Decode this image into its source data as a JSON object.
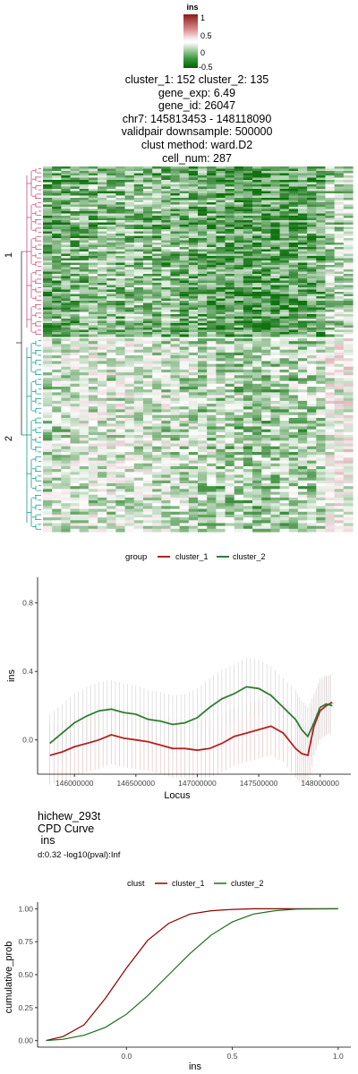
{
  "colorbar": {
    "title": "ins",
    "ticks": [
      "1",
      "0.5",
      "0",
      "-0.5"
    ],
    "colors": [
      "#8b1a1a",
      "#ffffff",
      "#006400"
    ]
  },
  "heatmap_title": [
    "cluster_1: 152 cluster_2: 135",
    "gene_exp: 6.49",
    "gene_id: 26047",
    "chr7: 145813453 - 148118090",
    "validpair downsample: 500000",
    "clust method: ward.D2",
    "cell_num: 287"
  ],
  "heatmap": {
    "row_labels": [
      "1",
      "2"
    ],
    "cluster_colors": [
      "#c0507a",
      "#1a9a8a"
    ]
  },
  "chart_data": [
    {
      "type": "line",
      "legend_title": "group",
      "series": [
        {
          "name": "cluster_1",
          "color": "#b22222",
          "x": [
            145800000,
            145900000,
            146000000,
            146100000,
            146200000,
            146300000,
            146400000,
            146500000,
            146600000,
            146700000,
            146800000,
            146900000,
            147000000,
            147100000,
            147200000,
            147300000,
            147400000,
            147500000,
            147600000,
            147700000,
            147800000,
            147850000,
            147900000,
            147950000,
            148000000,
            148050000,
            148100000
          ],
          "y": [
            -0.09,
            -0.07,
            -0.04,
            -0.02,
            0.0,
            0.03,
            0.01,
            0.0,
            -0.01,
            -0.03,
            -0.05,
            -0.05,
            -0.06,
            -0.05,
            -0.02,
            0.02,
            0.04,
            0.06,
            0.08,
            0.04,
            -0.05,
            -0.08,
            -0.09,
            0.08,
            0.17,
            0.2,
            0.22
          ]
        },
        {
          "name": "cluster_2",
          "color": "#2e7d32",
          "x": [
            145800000,
            145900000,
            146000000,
            146100000,
            146200000,
            146300000,
            146400000,
            146500000,
            146600000,
            146700000,
            146800000,
            146900000,
            147000000,
            147100000,
            147200000,
            147300000,
            147400000,
            147500000,
            147600000,
            147700000,
            147800000,
            147850000,
            147900000,
            147950000,
            148000000,
            148050000,
            148100000
          ],
          "y": [
            -0.02,
            0.04,
            0.1,
            0.14,
            0.17,
            0.18,
            0.16,
            0.15,
            0.12,
            0.11,
            0.09,
            0.1,
            0.13,
            0.19,
            0.24,
            0.27,
            0.31,
            0.3,
            0.26,
            0.19,
            0.12,
            0.06,
            0.02,
            0.1,
            0.19,
            0.21,
            0.2
          ]
        }
      ],
      "xlabel": "Locus",
      "ylabel": "ins",
      "xticks": [
        146000000,
        146500000,
        147000000,
        147500000,
        148000000
      ],
      "yticks": [
        0.0,
        0.4,
        0.8
      ],
      "xlim": [
        145700000,
        148250000
      ],
      "ylim": [
        -0.2,
        0.95
      ]
    },
    {
      "type": "line",
      "title": "hichew_293t\nCPD Curve\n ins",
      "subtitle": "d:0.32  -log10(pval):Inf",
      "legend_title": "clust",
      "series": [
        {
          "name": "cluster_1",
          "color": "#8b0000",
          "x": [
            -0.38,
            -0.3,
            -0.2,
            -0.1,
            0.0,
            0.1,
            0.2,
            0.3,
            0.4,
            0.5,
            0.6,
            0.7,
            0.8,
            1.0
          ],
          "y": [
            0.0,
            0.03,
            0.12,
            0.32,
            0.55,
            0.76,
            0.89,
            0.96,
            0.985,
            0.995,
            1.0,
            1.0,
            1.0,
            1.0
          ]
        },
        {
          "name": "cluster_2",
          "color": "#1b6e1b",
          "x": [
            -0.38,
            -0.3,
            -0.2,
            -0.1,
            0.0,
            0.1,
            0.2,
            0.3,
            0.4,
            0.5,
            0.6,
            0.7,
            0.8,
            1.0
          ],
          "y": [
            0.0,
            0.01,
            0.04,
            0.1,
            0.2,
            0.34,
            0.5,
            0.66,
            0.8,
            0.9,
            0.96,
            0.985,
            0.997,
            1.0
          ]
        }
      ],
      "xlabel": "ins",
      "ylabel": "cumulative_prob",
      "xticks": [
        0.0,
        0.5,
        1.0
      ],
      "yticks": [
        0.0,
        0.25,
        0.5,
        0.75,
        1.0
      ],
      "xlim": [
        -0.42,
        1.06
      ],
      "ylim": [
        -0.05,
        1.05
      ]
    }
  ]
}
